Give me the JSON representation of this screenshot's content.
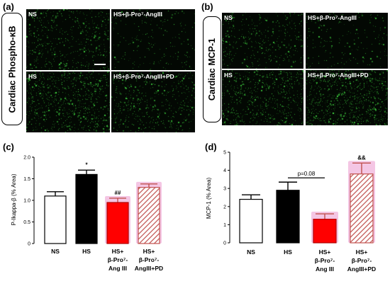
{
  "top_left": {
    "letter": "(a)",
    "side_label": "Cardiac Phospho-κB",
    "images": [
      {
        "label": "NS"
      },
      {
        "label": "HS+β-Pro⁷-AngIII"
      },
      {
        "label": "HS"
      },
      {
        "label": "HS+β-Pro⁷-AngIII+PD"
      }
    ]
  },
  "top_right": {
    "letter": "(b)",
    "side_label": "Cardiac MCP-1",
    "images": [
      {
        "label": "NS"
      },
      {
        "label": "HS+β-Pro⁷-AngIII"
      },
      {
        "label": "HS"
      },
      {
        "label": "HS+β-Pro⁷-AngIII+PD"
      }
    ]
  },
  "chart_data": [
    {
      "type": "bar",
      "panel": "(c)",
      "ylabel": "P-Ikappa-β (% Area)",
      "ylim": [
        0,
        2.0
      ],
      "yticks": [
        "0",
        "0.5",
        "1.0",
        "1.5",
        "2.0"
      ],
      "categories": [
        {
          "lines": [
            "NS"
          ]
        },
        {
          "lines": [
            "HS"
          ]
        },
        {
          "lines": [
            "HS+",
            "β-Pro⁷-",
            "Ang III"
          ]
        },
        {
          "lines": [
            "HS+",
            "β-Pro⁷-",
            "AngIII+PD"
          ]
        }
      ],
      "values": [
        1.1,
        1.6,
        0.95,
        1.3
      ],
      "errors": [
        0.1,
        0.1,
        0.1,
        0.08
      ],
      "annotations": [
        "",
        "*",
        "##",
        ""
      ],
      "fills": [
        "#ffffff",
        "#000000",
        "#ff0000",
        "hatch"
      ]
    },
    {
      "type": "bar",
      "panel": "(d)",
      "ylabel": "MCP-1 (% Area)",
      "ylim": [
        0,
        5
      ],
      "yticks": [
        "0",
        "1",
        "2",
        "3",
        "4",
        "5"
      ],
      "categories": [
        {
          "lines": [
            "NS"
          ]
        },
        {
          "lines": [
            "HS"
          ]
        },
        {
          "lines": [
            "HS+",
            "β-Pro⁷-",
            "Ang III"
          ]
        },
        {
          "lines": [
            "HS+",
            "β-Pro⁷-",
            "AngIII+PD"
          ]
        }
      ],
      "values": [
        2.4,
        2.9,
        1.3,
        3.8
      ],
      "errors": [
        0.25,
        0.45,
        0.3,
        0.6
      ],
      "annotations": [
        "",
        "",
        "",
        "&&"
      ],
      "fills": [
        "#ffffff",
        "#000000",
        "#ff0000",
        "hatch"
      ],
      "comparison": {
        "from": 1,
        "to": 2,
        "label": "p=0.08"
      }
    }
  ],
  "colors": {
    "red": "#ff0000",
    "hatch": "#c0504d",
    "shadow": "#f4c6e4",
    "stain": "#4cdc4c"
  }
}
